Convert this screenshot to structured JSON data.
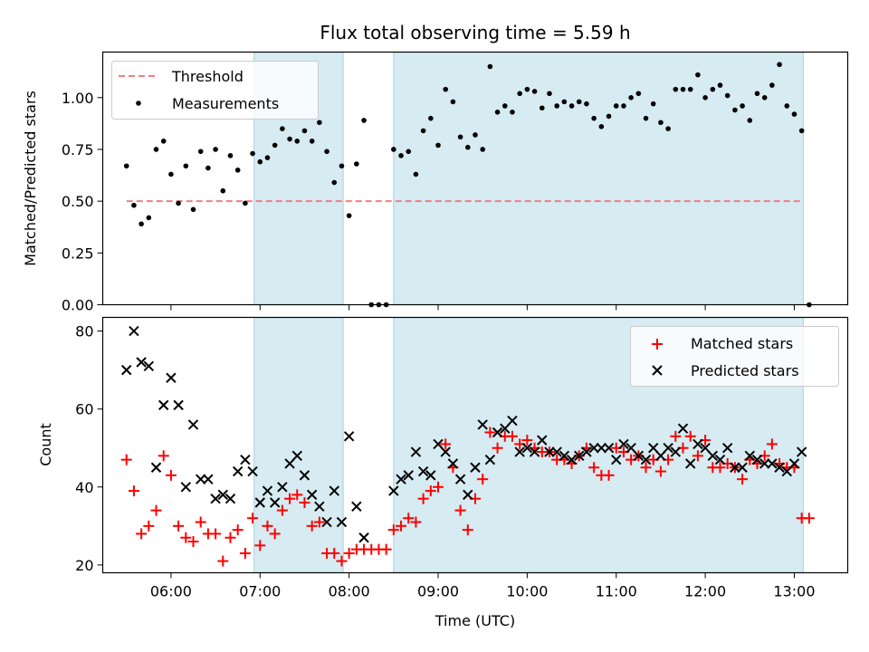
{
  "chart_data": [
    {
      "type": "scatter",
      "title": "Flux total observing time = 5.59 h",
      "xlabel": "",
      "ylabel": "Matched/Predicted stars",
      "ylim": [
        0,
        1.22
      ],
      "yticks": [
        "0.00",
        "0.25",
        "0.50",
        "0.75",
        "1.00"
      ],
      "xlim": [
        "05:14",
        "13:36"
      ],
      "grid": false,
      "legend_position": "top-left",
      "shaded_intervals": [
        [
          "06:56",
          "07:56"
        ],
        [
          "08:30",
          "13:06"
        ]
      ],
      "series": [
        {
          "name": "Threshold",
          "style": "dashed-line",
          "color": "#f08080",
          "x": [
            "05:30",
            "13:06"
          ],
          "y": [
            0.5,
            0.5
          ]
        },
        {
          "name": "Measurements",
          "style": "point",
          "color": "#000000",
          "x": [
            "05:30",
            "05:35",
            "05:40",
            "05:45",
            "05:50",
            "05:55",
            "06:00",
            "06:05",
            "06:10",
            "06:15",
            "06:20",
            "06:25",
            "06:30",
            "06:35",
            "06:40",
            "06:45",
            "06:50",
            "06:55",
            "07:00",
            "07:05",
            "07:10",
            "07:15",
            "07:20",
            "07:25",
            "07:30",
            "07:35",
            "07:40",
            "07:45",
            "07:50",
            "07:55",
            "08:00",
            "08:05",
            "08:10",
            "08:15",
            "08:20",
            "08:25",
            "08:30",
            "08:35",
            "08:40",
            "08:45",
            "08:50",
            "08:55",
            "09:00",
            "09:05",
            "09:10",
            "09:15",
            "09:20",
            "09:25",
            "09:30",
            "09:35",
            "09:40",
            "09:45",
            "09:50",
            "09:55",
            "10:00",
            "10:05",
            "10:10",
            "10:15",
            "10:20",
            "10:25",
            "10:30",
            "10:35",
            "10:40",
            "10:45",
            "10:50",
            "10:55",
            "11:00",
            "11:05",
            "11:10",
            "11:15",
            "11:20",
            "11:25",
            "11:30",
            "11:35",
            "11:40",
            "11:45",
            "11:50",
            "11:55",
            "12:00",
            "12:05",
            "12:10",
            "12:15",
            "12:20",
            "12:25",
            "12:30",
            "12:35",
            "12:40",
            "12:45",
            "12:50",
            "12:55",
            "13:00",
            "13:05",
            "13:10"
          ],
          "y": [
            0.67,
            0.48,
            0.39,
            0.42,
            0.75,
            0.79,
            0.63,
            0.49,
            0.67,
            0.46,
            0.74,
            0.66,
            0.75,
            0.55,
            0.72,
            0.65,
            0.49,
            0.73,
            0.69,
            0.71,
            0.77,
            0.85,
            0.8,
            0.79,
            0.84,
            0.79,
            0.88,
            0.74,
            0.59,
            0.67,
            0.43,
            0.68,
            0.89,
            0.0,
            0.0,
            0.0,
            0.75,
            0.72,
            0.74,
            0.63,
            0.84,
            0.9,
            0.77,
            1.04,
            0.98,
            0.81,
            0.76,
            0.82,
            0.75,
            1.15,
            0.93,
            0.96,
            0.93,
            1.02,
            1.04,
            1.03,
            0.95,
            1.02,
            0.96,
            0.98,
            0.96,
            0.98,
            0.97,
            0.9,
            0.86,
            0.91,
            0.96,
            0.96,
            1.0,
            1.02,
            0.9,
            0.97,
            0.88,
            0.85,
            1.04,
            1.04,
            1.04,
            1.11,
            1.0,
            1.04,
            1.06,
            1.01,
            0.94,
            0.96,
            0.89,
            1.02,
            1.0,
            1.06,
            1.16,
            0.96,
            0.92,
            0.84,
            0.0
          ]
        }
      ]
    },
    {
      "type": "scatter",
      "title": "",
      "xlabel": "Time (UTC)",
      "ylabel": "Count",
      "ylim": [
        18,
        83.5
      ],
      "yticks": [
        "20",
        "40",
        "60",
        "80"
      ],
      "xlim": [
        "05:14",
        "13:36"
      ],
      "xticks": [
        "06:00",
        "07:00",
        "08:00",
        "09:00",
        "10:00",
        "11:00",
        "12:00",
        "13:00"
      ],
      "grid": false,
      "legend_position": "top-right",
      "shaded_intervals": [
        [
          "06:56",
          "07:56"
        ],
        [
          "08:30",
          "13:06"
        ]
      ],
      "series": [
        {
          "name": "Matched stars",
          "marker": "plus",
          "color": "#ff0000",
          "x": [
            "05:30",
            "05:35",
            "05:40",
            "05:45",
            "05:50",
            "05:55",
            "06:00",
            "06:05",
            "06:10",
            "06:15",
            "06:20",
            "06:25",
            "06:30",
            "06:35",
            "06:40",
            "06:45",
            "06:50",
            "06:55",
            "07:00",
            "07:05",
            "07:10",
            "07:15",
            "07:20",
            "07:25",
            "07:30",
            "07:35",
            "07:40",
            "07:45",
            "07:50",
            "07:55",
            "08:00",
            "08:05",
            "08:10",
            "08:15",
            "08:20",
            "08:25",
            "08:30",
            "08:35",
            "08:40",
            "08:45",
            "08:50",
            "08:55",
            "09:00",
            "09:05",
            "09:10",
            "09:15",
            "09:20",
            "09:25",
            "09:30",
            "09:35",
            "09:40",
            "09:45",
            "09:50",
            "09:55",
            "10:00",
            "10:05",
            "10:10",
            "10:15",
            "10:20",
            "10:25",
            "10:30",
            "10:35",
            "10:40",
            "10:45",
            "10:50",
            "10:55",
            "11:00",
            "11:05",
            "11:10",
            "11:15",
            "11:20",
            "11:25",
            "11:30",
            "11:35",
            "11:40",
            "11:45",
            "11:50",
            "11:55",
            "12:00",
            "12:05",
            "12:10",
            "12:15",
            "12:20",
            "12:25",
            "12:30",
            "12:35",
            "12:40",
            "12:45",
            "12:50",
            "12:55",
            "13:00",
            "13:05",
            "13:10"
          ],
          "y": [
            47,
            39,
            28,
            30,
            34,
            48,
            43,
            30,
            27,
            26,
            31,
            28,
            28,
            21,
            27,
            29,
            23,
            32,
            25,
            30,
            28,
            34,
            37,
            38,
            36,
            30,
            31,
            23,
            23,
            21,
            23,
            24,
            24,
            24,
            24,
            24,
            29,
            30,
            32,
            31,
            37,
            39,
            40,
            51,
            45,
            34,
            29,
            37,
            42,
            54,
            50,
            53,
            53,
            51,
            52,
            50,
            49,
            49,
            47,
            47,
            46,
            48,
            50,
            45,
            43,
            43,
            50,
            49,
            47,
            48,
            45,
            47,
            44,
            47,
            53,
            50,
            53,
            48,
            52,
            45,
            45,
            46,
            45,
            42,
            47,
            46,
            48,
            51,
            46,
            45,
            45,
            32,
            32
          ]
        },
        {
          "name": "Predicted stars",
          "marker": "x",
          "color": "#000000",
          "x": [
            "05:30",
            "05:35",
            "05:40",
            "05:45",
            "05:50",
            "05:55",
            "06:00",
            "06:05",
            "06:10",
            "06:15",
            "06:20",
            "06:25",
            "06:30",
            "06:35",
            "06:40",
            "06:45",
            "06:50",
            "06:55",
            "07:00",
            "07:05",
            "07:10",
            "07:15",
            "07:20",
            "07:25",
            "07:30",
            "07:35",
            "07:40",
            "07:45",
            "07:50",
            "07:55",
            "08:00",
            "08:05",
            "08:10",
            "08:30",
            "08:35",
            "08:40",
            "08:45",
            "08:50",
            "08:55",
            "09:00",
            "09:05",
            "09:10",
            "09:15",
            "09:20",
            "09:25",
            "09:30",
            "09:35",
            "09:40",
            "09:45",
            "09:50",
            "09:55",
            "10:00",
            "10:05",
            "10:10",
            "10:15",
            "10:20",
            "10:25",
            "10:30",
            "10:35",
            "10:40",
            "10:45",
            "10:50",
            "10:55",
            "11:00",
            "11:05",
            "11:10",
            "11:15",
            "11:20",
            "11:25",
            "11:30",
            "11:35",
            "11:40",
            "11:45",
            "11:50",
            "11:55",
            "12:00",
            "12:05",
            "12:10",
            "12:15",
            "12:20",
            "12:25",
            "12:30",
            "12:35",
            "12:40",
            "12:45",
            "12:50",
            "12:55",
            "13:00",
            "13:05"
          ],
          "y": [
            70,
            80,
            72,
            71,
            45,
            61,
            68,
            61,
            40,
            56,
            42,
            42,
            37,
            38,
            37,
            44,
            47,
            44,
            36,
            39,
            36,
            40,
            46,
            48,
            43,
            38,
            35,
            31,
            39,
            31,
            53,
            35,
            27,
            39,
            42,
            43,
            49,
            44,
            43,
            51,
            49,
            46,
            42,
            38,
            45,
            56,
            47,
            54,
            55,
            57,
            49,
            50,
            49,
            52,
            49,
            49,
            48,
            47,
            48,
            49,
            50,
            50,
            50,
            47,
            51,
            50,
            48,
            47,
            50,
            48,
            50,
            49,
            55,
            46,
            51,
            50,
            48,
            47,
            50,
            45,
            45,
            48,
            47,
            46,
            46,
            45,
            44,
            46,
            49
          ]
        }
      ]
    }
  ]
}
